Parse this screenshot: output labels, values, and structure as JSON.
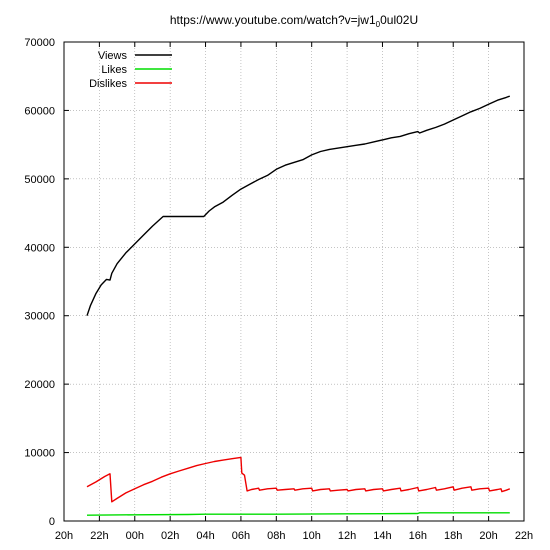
{
  "chart_data": {
    "type": "line",
    "title_parts": [
      "https://www.youtube.com/watch?v=jw1",
      "0",
      "0ul02U"
    ],
    "xlabel": "",
    "ylabel": "",
    "xlim": [
      20,
      46
    ],
    "ylim": [
      0,
      70000
    ],
    "x_ticks": [
      {
        "value": 20,
        "label": "20h"
      },
      {
        "value": 22,
        "label": "22h"
      },
      {
        "value": 24,
        "label": "00h"
      },
      {
        "value": 26,
        "label": "02h"
      },
      {
        "value": 28,
        "label": "04h"
      },
      {
        "value": 30,
        "label": "06h"
      },
      {
        "value": 32,
        "label": "08h"
      },
      {
        "value": 34,
        "label": "10h"
      },
      {
        "value": 36,
        "label": "12h"
      },
      {
        "value": 38,
        "label": "14h"
      },
      {
        "value": 40,
        "label": "16h"
      },
      {
        "value": 42,
        "label": "18h"
      },
      {
        "value": 44,
        "label": "20h"
      },
      {
        "value": 46,
        "label": "22h"
      }
    ],
    "y_ticks": [
      {
        "value": 0,
        "label": "0"
      },
      {
        "value": 10000,
        "label": "10000"
      },
      {
        "value": 20000,
        "label": "20000"
      },
      {
        "value": 30000,
        "label": "30000"
      },
      {
        "value": 40000,
        "label": "40000"
      },
      {
        "value": 50000,
        "label": "50000"
      },
      {
        "value": 60000,
        "label": "60000"
      },
      {
        "value": 70000,
        "label": "70000"
      }
    ],
    "grid": true,
    "legend_position": "top-left",
    "series": [
      {
        "name": "Views",
        "color": "#000000",
        "points": [
          [
            21.3,
            30000
          ],
          [
            21.5,
            31500
          ],
          [
            21.8,
            33200
          ],
          [
            22.1,
            34500
          ],
          [
            22.4,
            35300
          ],
          [
            22.6,
            35200
          ],
          [
            22.7,
            36200
          ],
          [
            23.0,
            37600
          ],
          [
            23.5,
            39200
          ],
          [
            24.0,
            40500
          ],
          [
            24.5,
            41800
          ],
          [
            25.0,
            43100
          ],
          [
            25.6,
            44500
          ],
          [
            26.5,
            44500
          ],
          [
            27.2,
            44500
          ],
          [
            27.9,
            44500
          ],
          [
            28.2,
            45300
          ],
          [
            28.5,
            45900
          ],
          [
            29.0,
            46600
          ],
          [
            29.5,
            47600
          ],
          [
            30.0,
            48500
          ],
          [
            30.5,
            49200
          ],
          [
            31.0,
            49900
          ],
          [
            31.5,
            50500
          ],
          [
            32.0,
            51400
          ],
          [
            32.5,
            52000
          ],
          [
            33.0,
            52400
          ],
          [
            33.5,
            52800
          ],
          [
            34.0,
            53500
          ],
          [
            34.5,
            54000
          ],
          [
            35.0,
            54300
          ],
          [
            35.5,
            54500
          ],
          [
            36.0,
            54700
          ],
          [
            36.5,
            54900
          ],
          [
            37.0,
            55100
          ],
          [
            37.5,
            55400
          ],
          [
            38.0,
            55700
          ],
          [
            38.5,
            56000
          ],
          [
            39.0,
            56200
          ],
          [
            39.5,
            56600
          ],
          [
            40.0,
            56900
          ],
          [
            40.1,
            56700
          ],
          [
            40.5,
            57100
          ],
          [
            41.0,
            57500
          ],
          [
            41.5,
            58000
          ],
          [
            42.0,
            58600
          ],
          [
            42.5,
            59200
          ],
          [
            43.0,
            59800
          ],
          [
            43.5,
            60300
          ],
          [
            44.0,
            60900
          ],
          [
            44.5,
            61500
          ],
          [
            45.0,
            61900
          ],
          [
            45.2,
            62100
          ]
        ]
      },
      {
        "name": "Likes",
        "color": "#00dd00",
        "points": [
          [
            21.3,
            850
          ],
          [
            24.0,
            900
          ],
          [
            27.0,
            950
          ],
          [
            28.0,
            1000
          ],
          [
            32.0,
            1000
          ],
          [
            36.0,
            1050
          ],
          [
            40.0,
            1100
          ],
          [
            40.1,
            1200
          ],
          [
            44.0,
            1200
          ],
          [
            45.2,
            1200
          ]
        ]
      },
      {
        "name": "Dislikes",
        "color": "#ee0000",
        "points": [
          [
            21.3,
            5000
          ],
          [
            21.8,
            5700
          ],
          [
            22.3,
            6500
          ],
          [
            22.6,
            6900
          ],
          [
            22.7,
            2800
          ],
          [
            23.0,
            3300
          ],
          [
            23.5,
            4100
          ],
          [
            24.0,
            4700
          ],
          [
            24.5,
            5300
          ],
          [
            25.0,
            5800
          ],
          [
            25.5,
            6400
          ],
          [
            26.0,
            6900
          ],
          [
            26.5,
            7300
          ],
          [
            27.0,
            7700
          ],
          [
            27.5,
            8100
          ],
          [
            28.0,
            8400
          ],
          [
            28.5,
            8700
          ],
          [
            29.0,
            8900
          ],
          [
            29.5,
            9100
          ],
          [
            30.0,
            9300
          ],
          [
            30.05,
            7000
          ],
          [
            30.2,
            6700
          ],
          [
            30.35,
            4400
          ],
          [
            30.6,
            4600
          ],
          [
            31.0,
            4800
          ],
          [
            31.05,
            4500
          ],
          [
            31.5,
            4700
          ],
          [
            32.0,
            4800
          ],
          [
            32.05,
            4500
          ],
          [
            32.5,
            4600
          ],
          [
            33.0,
            4700
          ],
          [
            33.05,
            4500
          ],
          [
            33.5,
            4700
          ],
          [
            34.0,
            4800
          ],
          [
            34.05,
            4400
          ],
          [
            34.5,
            4600
          ],
          [
            35.0,
            4700
          ],
          [
            35.05,
            4400
          ],
          [
            35.5,
            4500
          ],
          [
            36.0,
            4600
          ],
          [
            36.05,
            4400
          ],
          [
            36.5,
            4600
          ],
          [
            37.0,
            4700
          ],
          [
            37.05,
            4400
          ],
          [
            37.5,
            4600
          ],
          [
            38.0,
            4700
          ],
          [
            38.05,
            4400
          ],
          [
            38.5,
            4600
          ],
          [
            39.0,
            4800
          ],
          [
            39.05,
            4400
          ],
          [
            39.5,
            4600
          ],
          [
            40.0,
            4900
          ],
          [
            40.05,
            4400
          ],
          [
            40.5,
            4600
          ],
          [
            41.0,
            4900
          ],
          [
            41.05,
            4500
          ],
          [
            41.5,
            4700
          ],
          [
            42.0,
            5000
          ],
          [
            42.05,
            4500
          ],
          [
            42.5,
            4800
          ],
          [
            43.0,
            5000
          ],
          [
            43.05,
            4500
          ],
          [
            43.5,
            4700
          ],
          [
            44.0,
            4800
          ],
          [
            44.05,
            4400
          ],
          [
            44.5,
            4600
          ],
          [
            44.7,
            4700
          ],
          [
            44.75,
            4300
          ],
          [
            45.0,
            4500
          ],
          [
            45.2,
            4700
          ]
        ]
      }
    ]
  }
}
